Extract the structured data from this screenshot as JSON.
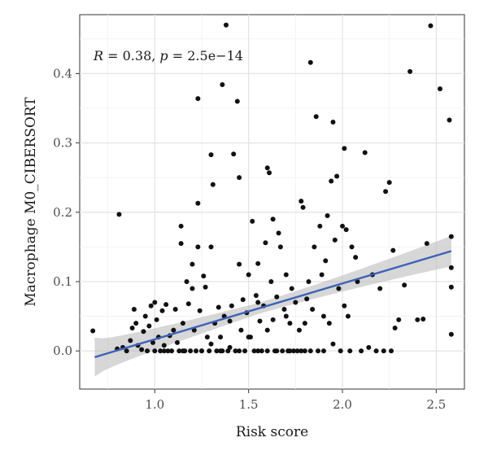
{
  "chart_data": {
    "type": "scatter",
    "title": "",
    "xlabel": "Risk score",
    "ylabel": "Macrophage M0_CIBERSORT",
    "xlim": [
      0.6,
      2.65
    ],
    "ylim": [
      -0.055,
      0.485
    ],
    "xticks": [
      "1.0",
      "1.5",
      "2.0",
      "2.5"
    ],
    "yticks": [
      "0.0",
      "0.1",
      "0.2",
      "0.3",
      "0.4"
    ],
    "grid": true,
    "annotation": {
      "r_label": "R",
      "r_value": " = 0.38, ",
      "p_label": "p",
      "p_value": " = 2.5e−14"
    },
    "regression": {
      "start": [
        0.68,
        -0.009
      ],
      "end": [
        2.58,
        0.144
      ],
      "color": "#3d62b8",
      "ci_color": "#bdbdbd",
      "ci_start_halfwidth": 0.028,
      "ci_min_halfwidth": 0.008,
      "ci_min_at": 1.55,
      "ci_end_halfwidth": 0.022
    },
    "point_color": "#111111",
    "points": [
      [
        0.67,
        0.029
      ],
      [
        0.8,
        0.003
      ],
      [
        0.81,
        0.197
      ],
      [
        0.83,
        0.005
      ],
      [
        0.85,
        0.0
      ],
      [
        0.87,
        0.015
      ],
      [
        0.88,
        0.033
      ],
      [
        0.89,
        0.06
      ],
      [
        0.9,
        0.04
      ],
      [
        0.91,
        0.008
      ],
      [
        0.93,
        0.002
      ],
      [
        0.94,
        0.028
      ],
      [
        0.95,
        0.05
      ],
      [
        0.96,
        0.0
      ],
      [
        0.97,
        0.036
      ],
      [
        0.98,
        0.065
      ],
      [
        0.99,
        0.012
      ],
      [
        1.0,
        0.07
      ],
      [
        1.01,
        0.045
      ],
      [
        1.02,
        0.02
      ],
      [
        1.03,
        0.0
      ],
      [
        1.04,
        0.058
      ],
      [
        1.05,
        0.008
      ],
      [
        1.06,
        0.067
      ],
      [
        1.07,
        0.0
      ],
      [
        1.08,
        0.022
      ],
      [
        1.09,
        0.0
      ],
      [
        1.1,
        0.03
      ],
      [
        1.11,
        0.06
      ],
      [
        1.12,
        0.012
      ],
      [
        1.13,
        0.0
      ],
      [
        1.14,
        0.18
      ],
      [
        1.14,
        0.155
      ],
      [
        1.15,
        0.04
      ],
      [
        1.16,
        0.0
      ],
      [
        1.17,
        0.1
      ],
      [
        1.18,
        0.068
      ],
      [
        1.19,
        0.0
      ],
      [
        1.2,
        0.09
      ],
      [
        1.2,
        0.125
      ],
      [
        1.21,
        0.03
      ],
      [
        1.22,
        0.0
      ],
      [
        1.23,
        0.364
      ],
      [
        1.23,
        0.213
      ],
      [
        1.23,
        0.15
      ],
      [
        1.24,
        0.058
      ],
      [
        1.25,
        0.0
      ],
      [
        1.26,
        0.108
      ],
      [
        1.27,
        0.092
      ],
      [
        1.28,
        0.02
      ],
      [
        1.29,
        0.0
      ],
      [
        1.3,
        0.283
      ],
      [
        1.3,
        0.15
      ],
      [
        1.31,
        0.24
      ],
      [
        1.32,
        0.04
      ],
      [
        1.33,
        0.0
      ],
      [
        1.34,
        0.063
      ],
      [
        1.35,
        0.02
      ],
      [
        1.36,
        0.384
      ],
      [
        1.36,
        0.0
      ],
      [
        1.37,
        0.05
      ],
      [
        1.38,
        0.47
      ],
      [
        1.39,
        0.0
      ],
      [
        1.4,
        0.043
      ],
      [
        1.41,
        0.065
      ],
      [
        1.42,
        0.284
      ],
      [
        1.43,
        0.0
      ],
      [
        1.44,
        0.36
      ],
      [
        1.45,
        0.125
      ],
      [
        1.45,
        0.25
      ],
      [
        1.46,
        0.03
      ],
      [
        1.47,
        0.074
      ],
      [
        1.48,
        0.0
      ],
      [
        1.49,
        0.055
      ],
      [
        1.5,
        0.11
      ],
      [
        1.51,
        0.02
      ],
      [
        1.52,
        0.187
      ],
      [
        1.53,
        0.0
      ],
      [
        1.54,
        0.08
      ],
      [
        1.55,
        0.126
      ],
      [
        1.56,
        0.043
      ],
      [
        1.57,
        0.0
      ],
      [
        1.58,
        0.065
      ],
      [
        1.59,
        0.156
      ],
      [
        1.6,
        0.264
      ],
      [
        1.6,
        0.0
      ],
      [
        1.61,
        0.257
      ],
      [
        1.62,
        0.1
      ],
      [
        1.63,
        0.19
      ],
      [
        1.63,
        0.045
      ],
      [
        1.64,
        0.0
      ],
      [
        1.65,
        0.078
      ],
      [
        1.66,
        0.17
      ],
      [
        1.67,
        0.15
      ],
      [
        1.68,
        0.0
      ],
      [
        1.69,
        0.06
      ],
      [
        1.7,
        0.11
      ],
      [
        1.71,
        0.0
      ],
      [
        1.72,
        0.04
      ],
      [
        1.73,
        0.09
      ],
      [
        1.74,
        0.0
      ],
      [
        1.75,
        0.07
      ],
      [
        1.76,
        0.0
      ],
      [
        1.77,
        0.03
      ],
      [
        1.78,
        0.216
      ],
      [
        1.79,
        0.207
      ],
      [
        1.8,
        0.0
      ],
      [
        1.81,
        0.075
      ],
      [
        1.82,
        0.1
      ],
      [
        1.83,
        0.416
      ],
      [
        1.83,
        0.0
      ],
      [
        1.84,
        0.06
      ],
      [
        1.85,
        0.15
      ],
      [
        1.86,
        0.338
      ],
      [
        1.87,
        0.0
      ],
      [
        1.88,
        0.18
      ],
      [
        1.89,
        0.11
      ],
      [
        1.9,
        0.0
      ],
      [
        1.91,
        0.13
      ],
      [
        1.92,
        0.195
      ],
      [
        1.93,
        0.04
      ],
      [
        1.94,
        0.245
      ],
      [
        1.95,
        0.33
      ],
      [
        1.95,
        0.01
      ],
      [
        1.96,
        0.16
      ],
      [
        1.97,
        0.252
      ],
      [
        1.98,
        0.09
      ],
      [
        1.99,
        0.0
      ],
      [
        2.0,
        0.18
      ],
      [
        2.01,
        0.292
      ],
      [
        2.01,
        0.065
      ],
      [
        2.02,
        0.175
      ],
      [
        2.03,
        0.05
      ],
      [
        2.04,
        0.0
      ],
      [
        2.05,
        0.15
      ],
      [
        2.07,
        0.135
      ],
      [
        2.08,
        0.1
      ],
      [
        2.1,
        0.0
      ],
      [
        2.12,
        0.286
      ],
      [
        2.14,
        0.005
      ],
      [
        2.16,
        0.11
      ],
      [
        2.18,
        0.0
      ],
      [
        2.2,
        0.09
      ],
      [
        2.22,
        0.0
      ],
      [
        2.23,
        0.23
      ],
      [
        2.25,
        0.243
      ],
      [
        2.26,
        0.0
      ],
      [
        2.27,
        0.145
      ],
      [
        2.28,
        0.033
      ],
      [
        2.3,
        0.045
      ],
      [
        2.33,
        0.095
      ],
      [
        2.36,
        0.403
      ],
      [
        2.4,
        0.045
      ],
      [
        2.43,
        0.046
      ],
      [
        2.45,
        0.155
      ],
      [
        2.47,
        0.469
      ],
      [
        2.52,
        0.378
      ],
      [
        2.57,
        0.333
      ],
      [
        2.58,
        0.165
      ],
      [
        2.58,
        0.12
      ],
      [
        2.58,
        0.092
      ],
      [
        2.58,
        0.024
      ],
      [
        1.0,
        0.0
      ],
      [
        1.05,
        0.0
      ],
      [
        1.15,
        0.0
      ],
      [
        1.25,
        0.0
      ],
      [
        1.35,
        0.0
      ],
      [
        1.45,
        0.0
      ],
      [
        1.55,
        0.0
      ],
      [
        1.65,
        0.0
      ],
      [
        1.72,
        0.0
      ],
      [
        1.78,
        0.0
      ],
      [
        1.5,
        0.02
      ],
      [
        1.6,
        0.03
      ],
      [
        1.4,
        0.005
      ],
      [
        1.3,
        0.01
      ],
      [
        1.7,
        0.05
      ],
      [
        1.8,
        0.04
      ],
      [
        1.9,
        0.05
      ],
      [
        1.55,
        0.07
      ]
    ]
  }
}
